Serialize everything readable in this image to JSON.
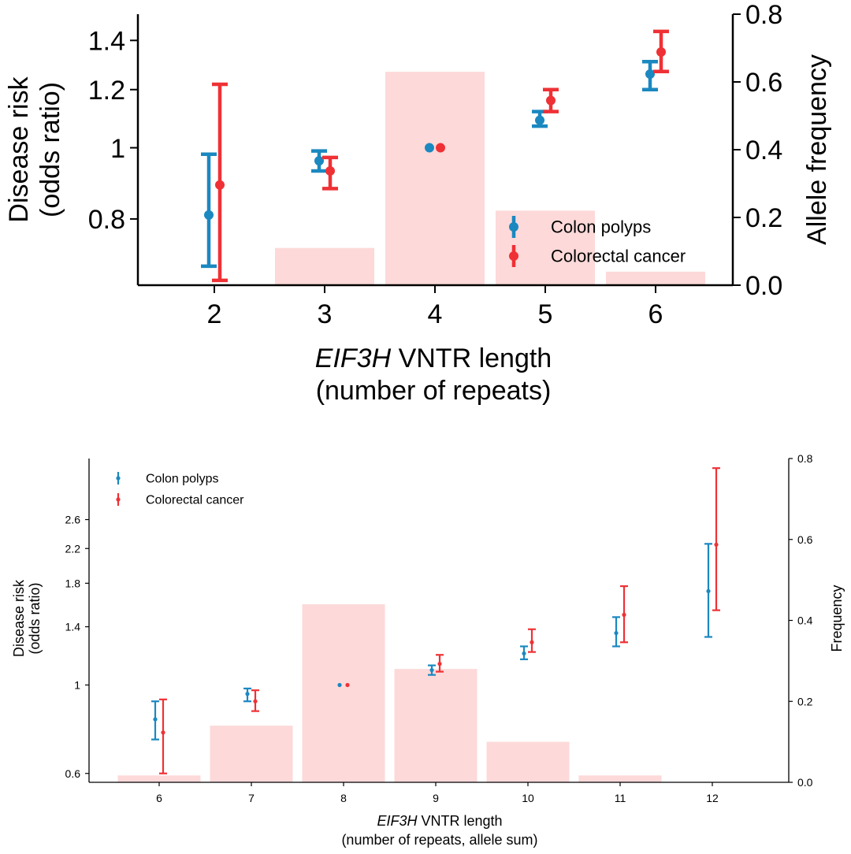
{
  "chart_data": [
    {
      "type": "bar+errorbar",
      "xlabel_italic": "EIF3H",
      "xlabel_rest": " VNTR length",
      "xlabel_line2": "(number of repeats)",
      "ylabel_line1": "Disease risk",
      "ylabel_line2": "(odds ratio)",
      "y2label": "Allele frequency",
      "categories": [
        2,
        3,
        4,
        5,
        6
      ],
      "x_tick_labels": [
        "2",
        "3",
        "4",
        "5",
        "6"
      ],
      "y_tick_labels": [
        "0.8",
        "1",
        "1.2",
        "1.4"
      ],
      "y2_tick_labels": [
        "0.0",
        "0.2",
        "0.4",
        "0.6",
        "0.8"
      ],
      "ylim_log": [
        0.65,
        1.52
      ],
      "y2lim": [
        0,
        0.8
      ],
      "bar_color": "#fdd9d9",
      "frequency": [
        0,
        0.11,
        0.63,
        0.22,
        0.04
      ],
      "series": [
        {
          "name": "Colon polyps",
          "color": "#1b88c0",
          "x": [
            2,
            3,
            4,
            5,
            6
          ],
          "values": [
            0.81,
            0.96,
            1.0,
            1.09,
            1.26
          ],
          "lower": [
            0.69,
            0.93,
            1.0,
            1.07,
            1.2
          ],
          "upper": [
            0.98,
            0.99,
            1.0,
            1.12,
            1.31
          ]
        },
        {
          "name": "Colorectal cancer",
          "color": "#ef3135",
          "x": [
            2,
            3,
            4,
            5,
            6
          ],
          "values": [
            0.89,
            0.93,
            1.0,
            1.16,
            1.35
          ],
          "lower": [
            0.66,
            0.88,
            1.0,
            1.12,
            1.27
          ],
          "upper": [
            1.22,
            0.97,
            1.0,
            1.2,
            1.44
          ]
        }
      ],
      "legend": [
        "Colon polyps",
        "Colorectal cancer"
      ],
      "legend_position": "bottom-right"
    },
    {
      "type": "bar+errorbar",
      "xlabel_italic": "EIF3H",
      "xlabel_rest": " VNTR length",
      "xlabel_line2": "(number of repeats, allele sum)",
      "ylabel_line1": "Disease risk",
      "ylabel_line2": "(odds ratio)",
      "y2label": "Frequency",
      "categories": [
        6,
        7,
        8,
        9,
        10,
        11,
        12
      ],
      "x_tick_labels": [
        "6",
        "7",
        "8",
        "9",
        "10",
        "11",
        "12"
      ],
      "y_tick_labels": [
        "0.6",
        "1",
        "1.4",
        "1.8",
        "2.2",
        "2.6"
      ],
      "y2_tick_labels": [
        "0.0",
        "0.2",
        "0.4",
        "0.6",
        "0.8"
      ],
      "ylim_log": [
        0.57,
        3.7
      ],
      "y2lim": [
        0,
        0.8
      ],
      "bar_color": "#fdd9d9",
      "frequency": [
        0.017,
        0.14,
        0.44,
        0.28,
        0.1,
        0.017,
        0
      ],
      "series": [
        {
          "name": "Colon polyps",
          "color": "#1b88c0",
          "x": [
            6,
            7,
            8,
            9,
            10,
            11,
            12
          ],
          "values": [
            0.82,
            0.95,
            1.0,
            1.09,
            1.2,
            1.35,
            1.72
          ],
          "lower": [
            0.73,
            0.91,
            1.0,
            1.06,
            1.16,
            1.25,
            1.32
          ],
          "upper": [
            0.91,
            0.98,
            1.0,
            1.12,
            1.25,
            1.48,
            2.26
          ]
        },
        {
          "name": "Colorectal cancer",
          "color": "#ef3135",
          "x": [
            6,
            7,
            8,
            9,
            10,
            11,
            12
          ],
          "values": [
            0.76,
            0.91,
            1.0,
            1.13,
            1.28,
            1.5,
            2.25
          ],
          "lower": [
            0.6,
            0.86,
            1.0,
            1.08,
            1.21,
            1.28,
            1.54
          ],
          "upper": [
            0.92,
            0.97,
            1.0,
            1.19,
            1.38,
            1.77,
            3.5
          ]
        }
      ],
      "legend": [
        "Colon polyps",
        "Colorectal cancer"
      ],
      "legend_position": "top-left"
    }
  ]
}
